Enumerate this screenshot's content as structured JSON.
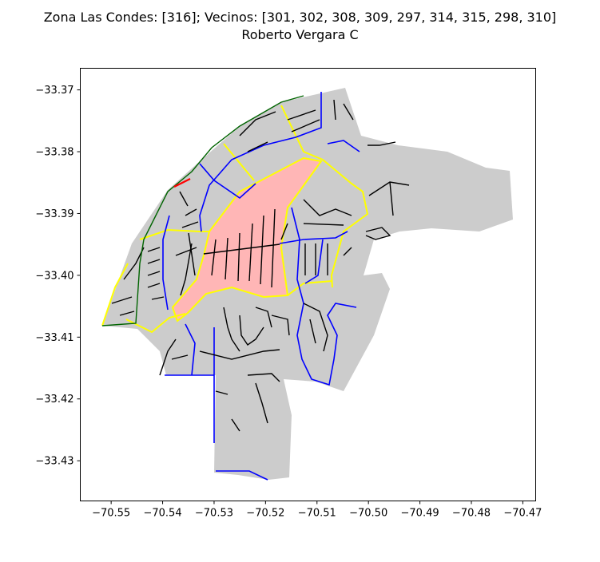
{
  "header": {
    "title_line1": "Zona Las Condes: [316]; Vecinos: [301, 302, 308, 309, 297, 314, 315, 298, 310]",
    "title_line2": "Roberto Vergara C"
  },
  "map": {
    "xlim": [
      -70.556,
      -70.4675
    ],
    "ylim": [
      -33.4365,
      -33.3665
    ],
    "x_ticks": [
      -70.55,
      -70.54,
      -70.53,
      -70.52,
      -70.51,
      -70.5,
      -70.49,
      -70.48,
      -70.47
    ],
    "x_tick_labels": [
      "−70.55",
      "−70.54",
      "−70.53",
      "−70.52",
      "−70.51",
      "−70.50",
      "−70.49",
      "−70.48",
      "−70.47"
    ],
    "y_ticks": [
      -33.37,
      -33.38,
      -33.39,
      -33.4,
      -33.41,
      -33.42,
      -33.43
    ],
    "y_tick_labels": [
      "−33.37",
      "−33.38",
      "−33.39",
      "−33.40",
      "−33.41",
      "−33.42",
      "−33.43"
    ],
    "colors": {
      "commune_fill": "#cccccc",
      "zone_fill": "#ffb6b6",
      "street_local": "#000000",
      "street_main": "#0000ff",
      "zone_boundary": "#ffff00",
      "limit_line": "#006400",
      "highlight_segment": "#ff0000"
    }
  }
}
